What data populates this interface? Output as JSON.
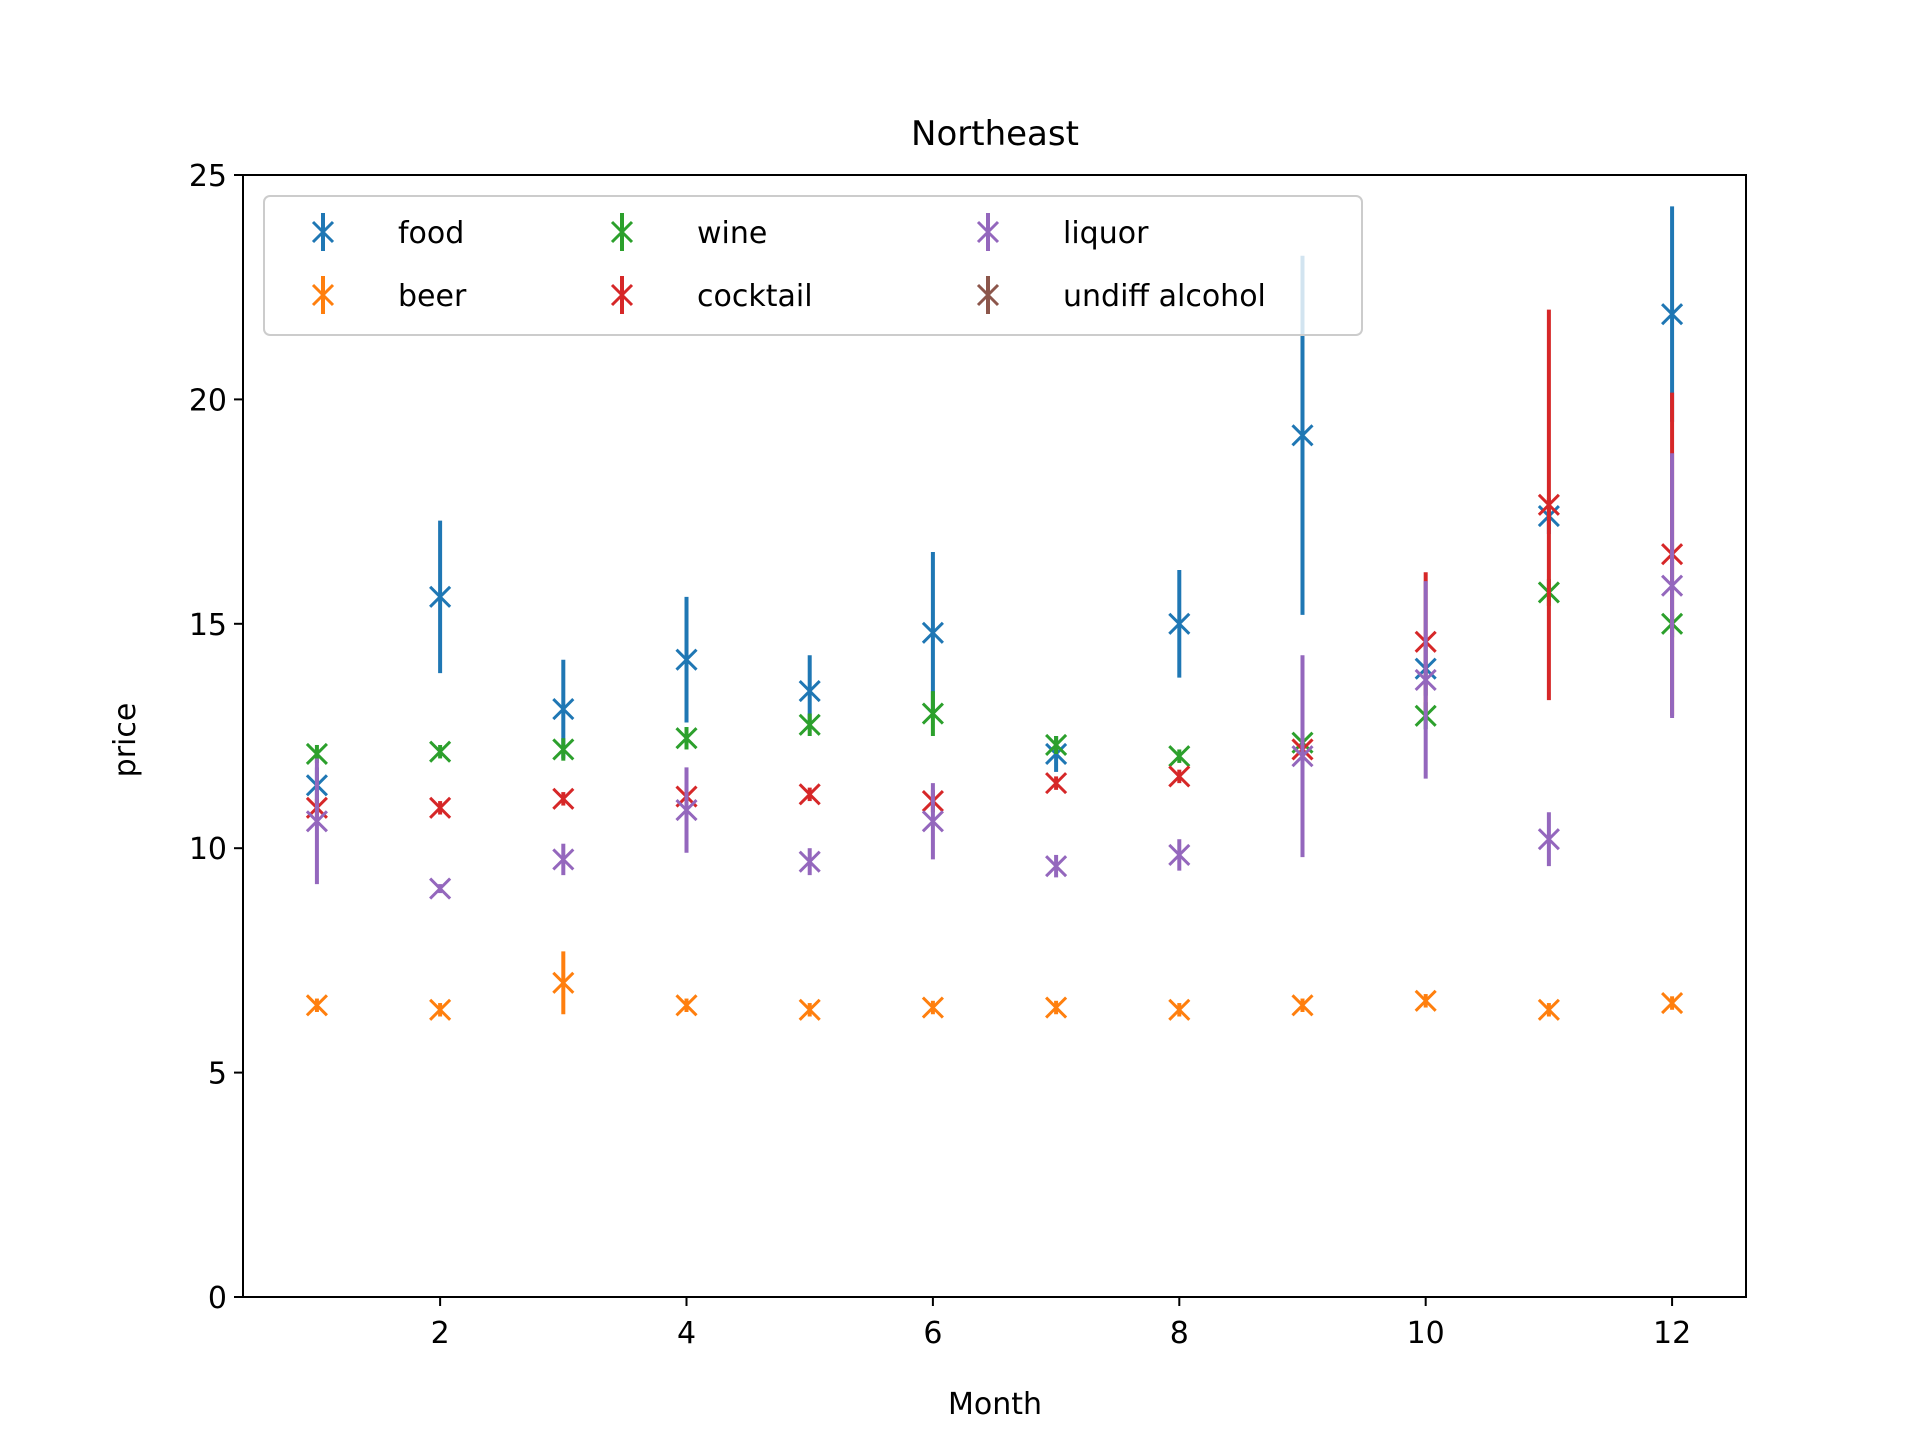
{
  "chart_data": {
    "type": "scatter",
    "title": "Northeast",
    "xlabel": "Month",
    "ylabel": "price",
    "xlim": [
      0.4,
      12.6
    ],
    "ylim": [
      0,
      25
    ],
    "xticks": [
      2,
      4,
      6,
      8,
      10,
      12
    ],
    "yticks": [
      0,
      5,
      10,
      15,
      20,
      25
    ],
    "grid": false,
    "legend_position": "top-left",
    "legend_columns": 3,
    "x": [
      1,
      2,
      3,
      4,
      5,
      6,
      7,
      8,
      9,
      10,
      11,
      12
    ],
    "series": [
      {
        "name": "food",
        "color": "#1f77b4",
        "values": [
          11.4,
          15.6,
          13.1,
          14.2,
          13.5,
          14.8,
          12.1,
          15.0,
          19.2,
          14.0,
          17.4,
          21.9
        ],
        "errors": [
          0.4,
          1.7,
          1.1,
          1.4,
          0.8,
          1.8,
          0.4,
          1.2,
          4.0,
          0.6,
          0.4,
          2.4
        ]
      },
      {
        "name": "beer",
        "color": "#ff7f0e",
        "values": [
          6.5,
          6.4,
          7.0,
          6.5,
          6.4,
          6.45,
          6.45,
          6.4,
          6.5,
          6.6,
          6.4,
          6.55
        ],
        "errors": [
          0.15,
          0.15,
          0.7,
          0.15,
          0.15,
          0.15,
          0.15,
          0.15,
          0.15,
          0.15,
          0.15,
          0.15
        ]
      },
      {
        "name": "wine",
        "color": "#2ca02c",
        "values": [
          12.1,
          12.15,
          12.2,
          12.45,
          12.75,
          13.0,
          12.3,
          12.05,
          12.35,
          12.95,
          15.7,
          15.0
        ],
        "errors": [
          0.2,
          0.15,
          0.25,
          0.25,
          0.25,
          0.5,
          0.2,
          0.15,
          0.25,
          0.3,
          0.3,
          0.3
        ]
      },
      {
        "name": "cocktail",
        "color": "#d62728",
        "values": [
          10.9,
          10.9,
          11.1,
          11.15,
          11.2,
          11.05,
          11.45,
          11.6,
          12.2,
          14.6,
          17.65,
          16.55
        ],
        "errors": [
          0.2,
          0.15,
          0.15,
          0.2,
          0.15,
          0.25,
          0.15,
          0.15,
          0.2,
          1.55,
          4.35,
          3.6
        ]
      },
      {
        "name": "liquor",
        "color": "#9467bd",
        "values": [
          10.6,
          9.1,
          9.75,
          10.85,
          9.7,
          10.6,
          9.6,
          9.85,
          12.05,
          13.75,
          10.2,
          15.85
        ],
        "errors": [
          1.4,
          0.1,
          0.35,
          0.95,
          0.3,
          0.85,
          0.25,
          0.35,
          2.25,
          2.2,
          0.6,
          2.95
        ]
      },
      {
        "name": "undiff alcohol",
        "color": "#8c564b",
        "values": [
          null,
          null,
          null,
          null,
          null,
          null,
          null,
          null,
          null,
          null,
          null,
          null
        ],
        "errors": [
          null,
          null,
          null,
          null,
          null,
          null,
          null,
          null,
          null,
          null,
          null,
          null
        ]
      }
    ]
  }
}
